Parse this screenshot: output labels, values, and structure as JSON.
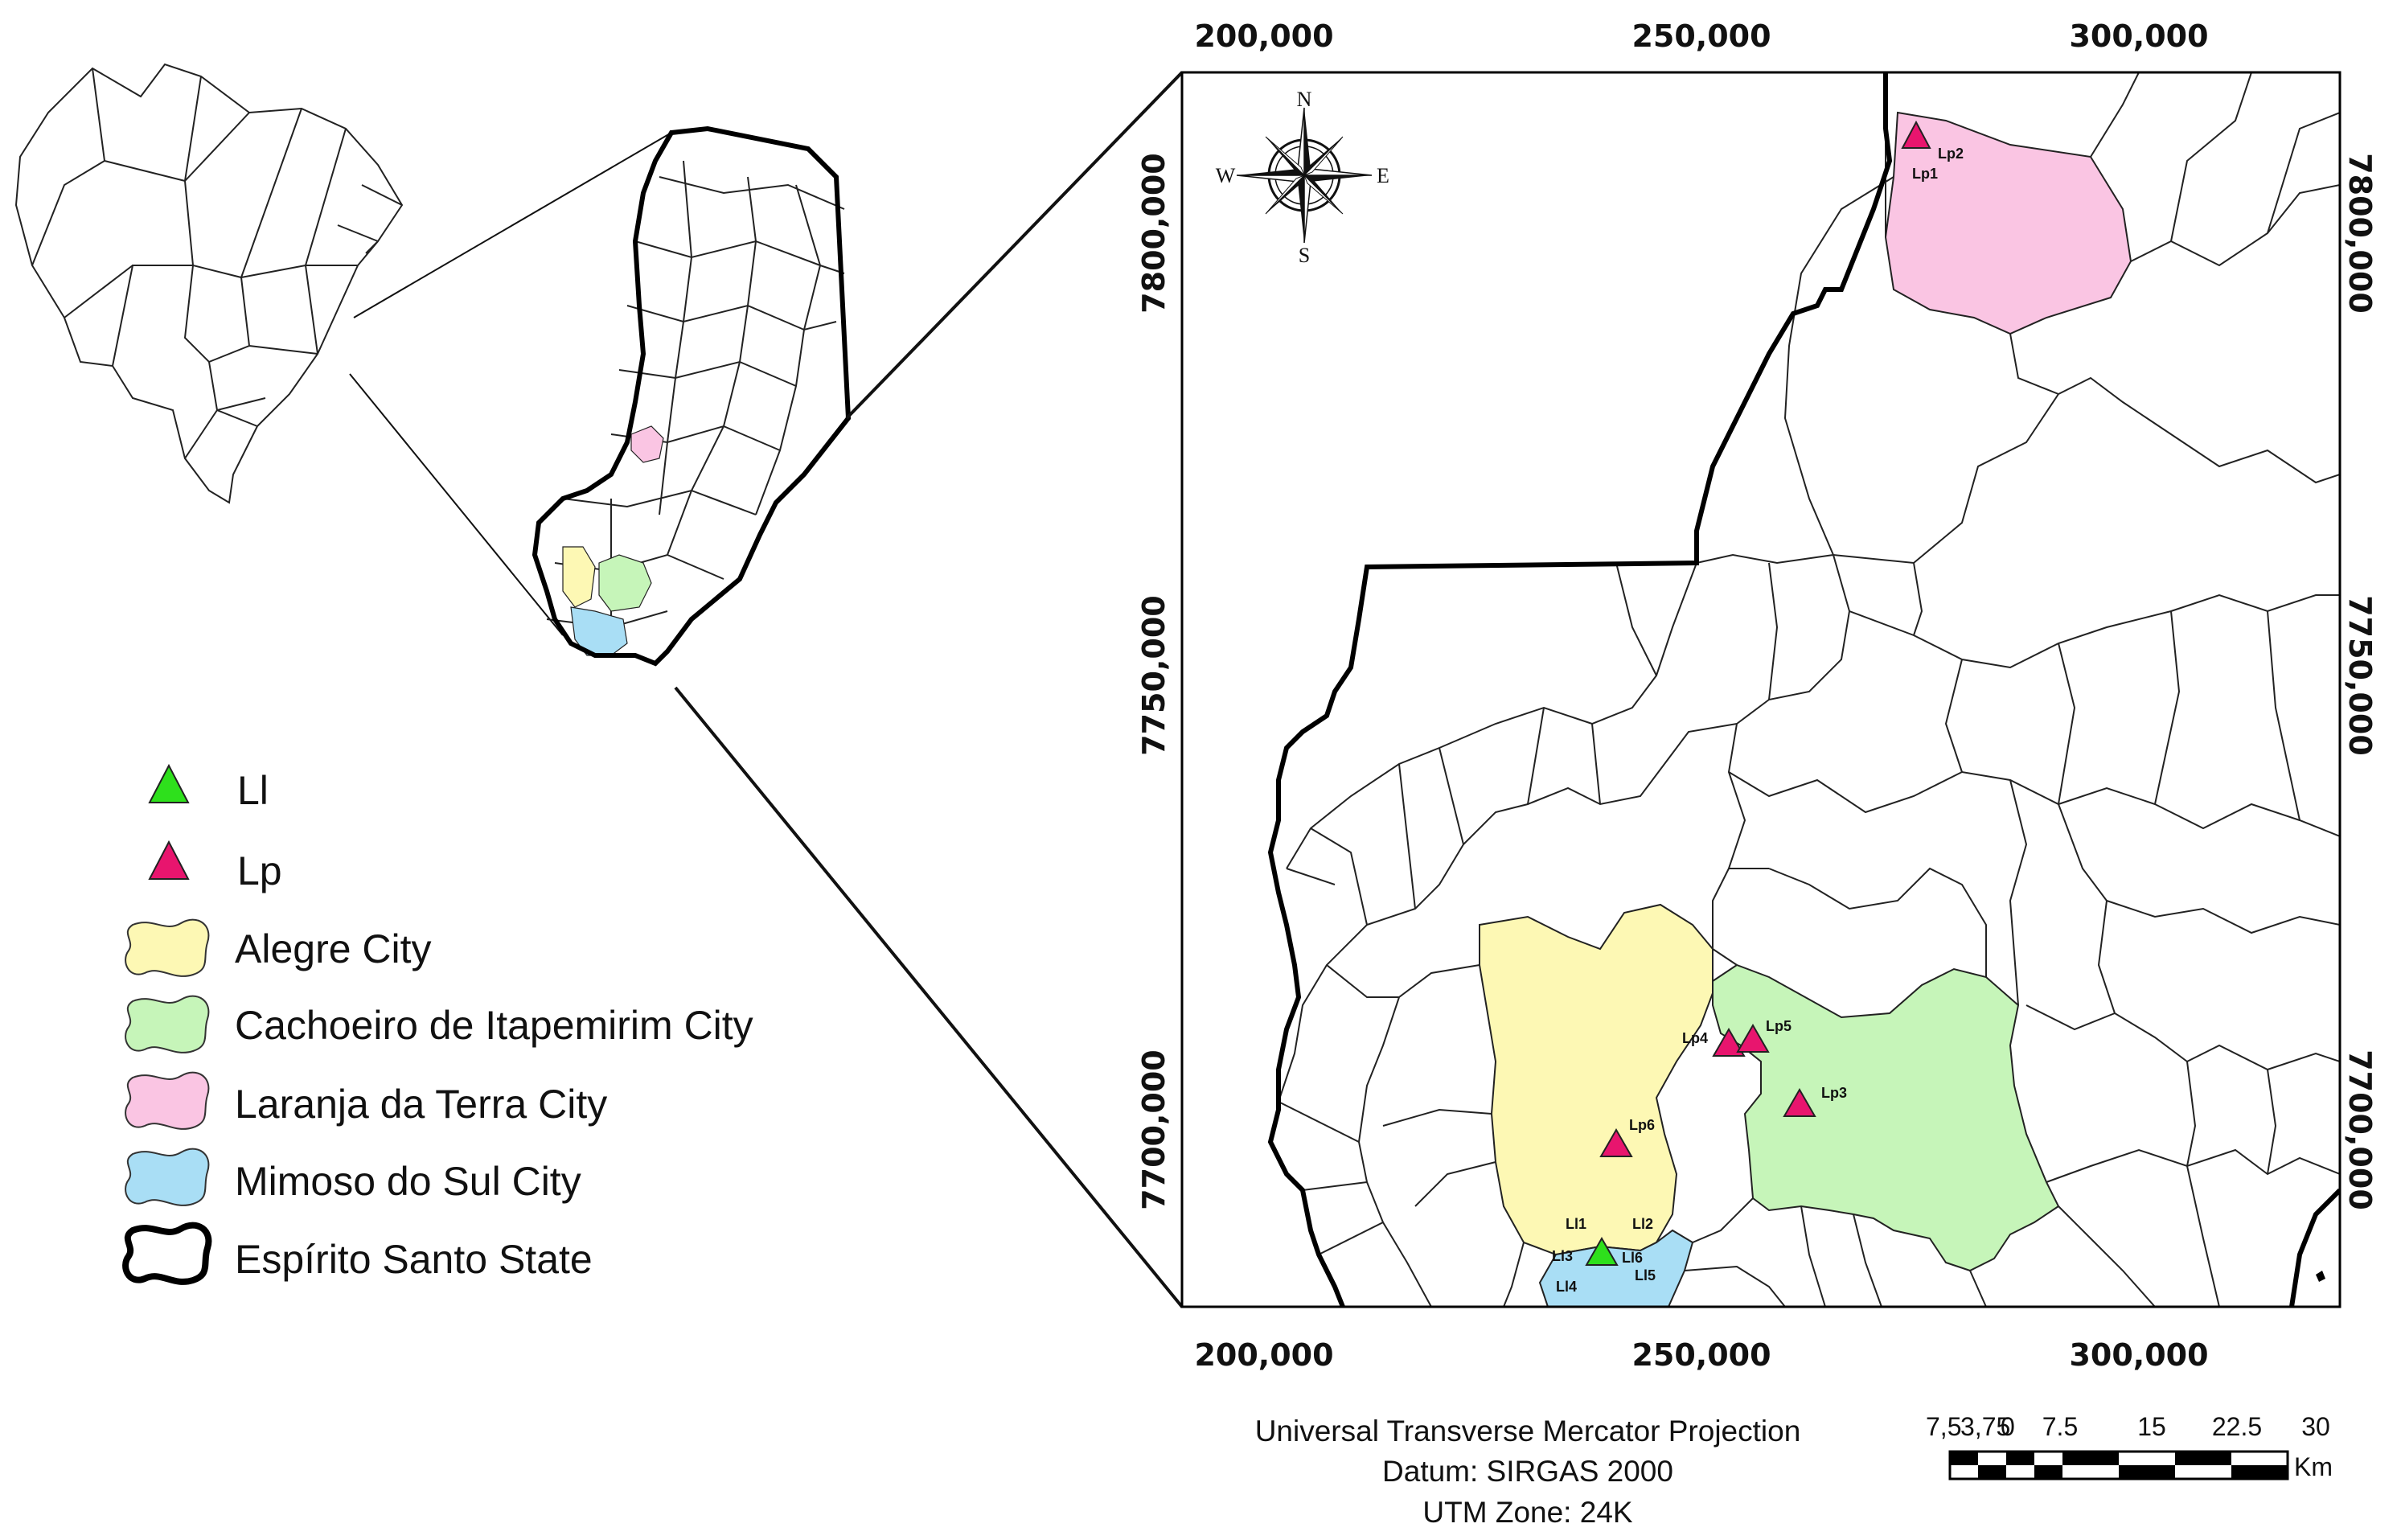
{
  "axes": {
    "x_labels": [
      "200,000",
      "250,000",
      "300,000"
    ],
    "y_labels": [
      "7800,000",
      "7750,000",
      "7700,000"
    ]
  },
  "compass": {
    "n": "N",
    "s": "S",
    "e": "E",
    "w": "W"
  },
  "points": {
    "Lp1": "Lp1",
    "Lp2": "Lp2",
    "Lp3": "Lp3",
    "Lp4": "Lp4",
    "Lp5": "Lp5",
    "Lp6": "Lp6",
    "Ll1": "Ll1",
    "Ll2": "Ll2",
    "Ll3": "Ll3",
    "Ll4": "Ll4",
    "Ll5": "Ll5",
    "Ll6": "Ll6"
  },
  "legend": {
    "ll": "Ll",
    "lp": "Lp",
    "alegre": "Alegre City",
    "cachoeiro": "Cachoeiro de Itapemirim City",
    "laranja": "Laranja da Terra City",
    "mimoso": "Mimoso do Sul City",
    "state": "Espírito Santo State"
  },
  "projection": {
    "line1": "Universal Transverse Mercator Projection",
    "line2": "Datum: SIRGAS 2000",
    "line3": "UTM Zone: 24K"
  },
  "scalebar": {
    "ticks": [
      "7,5",
      "3,75",
      "0",
      "7.5",
      "15",
      "22.5",
      "30"
    ],
    "unit": "Km"
  },
  "colors": {
    "alegre": "#fdf8b4",
    "cachoeiro": "#c6f5b9",
    "laranja": "#fac5e3",
    "mimoso": "#a9def5",
    "ll_marker": "#2ee01c",
    "lp_marker": "#e8156e"
  }
}
